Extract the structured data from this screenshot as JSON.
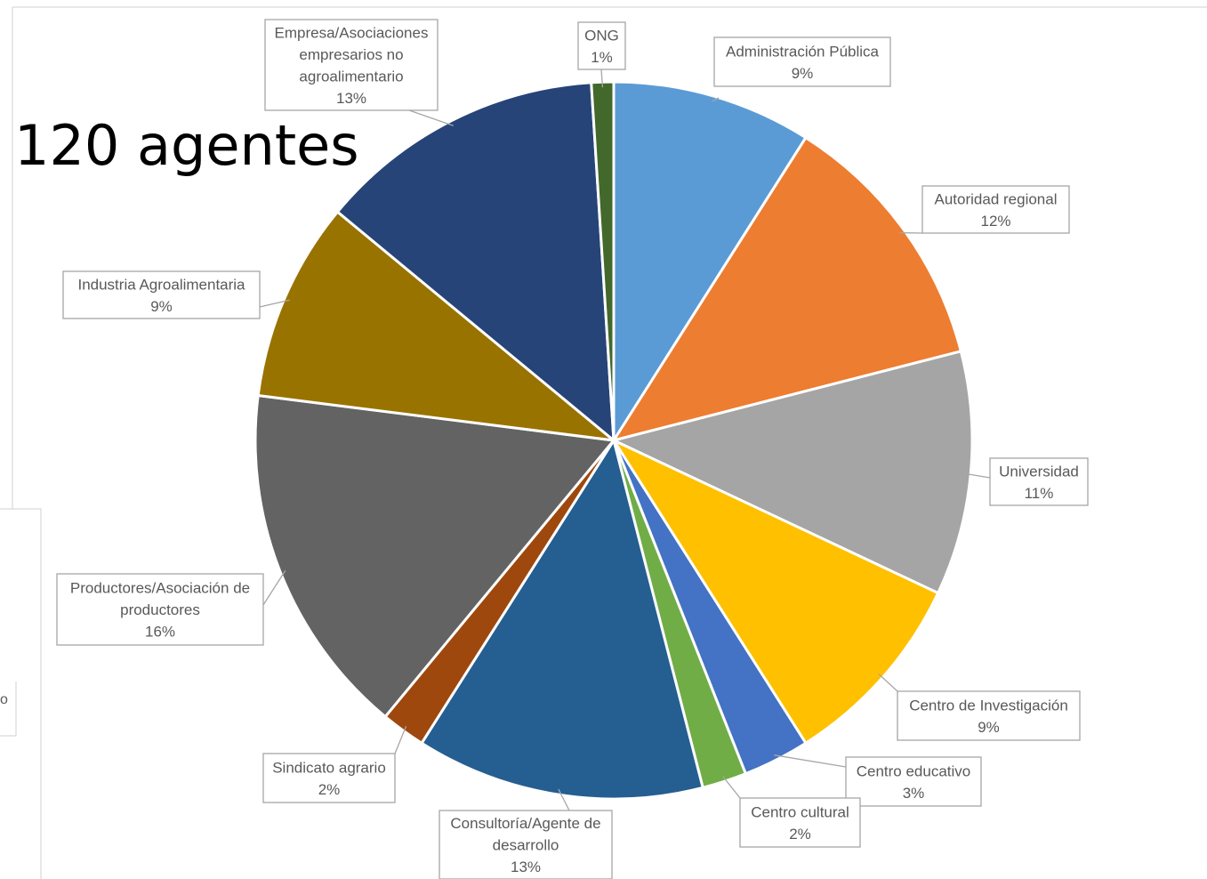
{
  "chart_data": {
    "type": "pie",
    "title": "120 agentes",
    "start_angle_deg": 0,
    "direction": "clockwise",
    "slices": [
      {
        "label": "Administración Pública",
        "value": 9,
        "label_lines": [
          "Administración Pública",
          "9%"
        ],
        "color": "#5B9BD5"
      },
      {
        "label": "Autoridad regional",
        "value": 12,
        "label_lines": [
          "Autoridad regional",
          "12%"
        ],
        "color": "#ED7D31"
      },
      {
        "label": "Universidad",
        "value": 11,
        "label_lines": [
          "Universidad",
          "11%"
        ],
        "color": "#A5A5A5"
      },
      {
        "label": "Centro de Investigación",
        "value": 9,
        "label_lines": [
          "Centro de Investigación",
          "9%"
        ],
        "color": "#FFC000"
      },
      {
        "label": "Centro educativo",
        "value": 3,
        "label_lines": [
          "Centro educativo",
          "3%"
        ],
        "color": "#4472C4"
      },
      {
        "label": "Centro cultural",
        "value": 2,
        "label_lines": [
          "Centro cultural",
          "2%"
        ],
        "color": "#70AD47"
      },
      {
        "label": "Consultoría/Agente de desarrollo",
        "value": 13,
        "label_lines": [
          "Consultoría/Agente de",
          "desarrollo",
          "13%"
        ],
        "color": "#255E91"
      },
      {
        "label": "Sindicato agrario",
        "value": 2,
        "label_lines": [
          "Sindicato agrario",
          "2%"
        ],
        "color": "#9E480E"
      },
      {
        "label": "Productores/Asociación de productores",
        "value": 16,
        "label_lines": [
          "Productores/Asociación de",
          "productores",
          "16%"
        ],
        "color": "#636363"
      },
      {
        "label": "Industria Agroalimentaria",
        "value": 9,
        "label_lines": [
          "Industria Agroalimentaria",
          "9%"
        ],
        "color": "#997300"
      },
      {
        "label": "Empresa/Asociaciones empresarios no agroalimentario",
        "value": 13,
        "label_lines": [
          "Empresa/Asociaciones",
          "empresarios no",
          "agroalimentario",
          "13%"
        ],
        "color": "#264478"
      },
      {
        "label": "ONG",
        "value": 1,
        "label_lines": [
          "ONG",
          "1%"
        ],
        "color": "#43682B"
      }
    ]
  },
  "edge_fragment": "o"
}
